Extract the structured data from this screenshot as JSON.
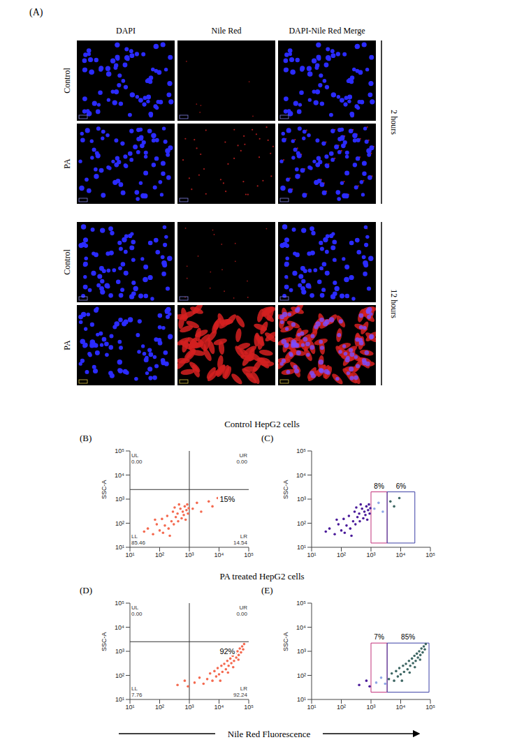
{
  "panel_a": {
    "label": "(A)",
    "columns": [
      "DAPI",
      "Nile Red",
      "DAPI-Nile Red Merge"
    ],
    "groups": [
      {
        "label": "2 hours",
        "rows": [
          "Control",
          "PA"
        ]
      },
      {
        "label": "12 hours",
        "rows": [
          "Control",
          "PA"
        ]
      }
    ]
  },
  "x_label": "Nile Red Fluorescence",
  "chart_data": [
    {
      "type": "scatter",
      "panel": "(B)",
      "group": "Control HepG2 cells",
      "y_label": "SSC-A",
      "log": true,
      "xlim": [
        10,
        100000
      ],
      "xticks": [
        {
          "value": 10,
          "label": "10¹"
        },
        {
          "value": 100,
          "label": "10²"
        },
        {
          "value": 1000,
          "label": "10³"
        },
        {
          "value": 10000,
          "label": "10⁴"
        },
        {
          "value": 100000,
          "label": "10⁵"
        }
      ],
      "ylim": [
        10,
        100000
      ],
      "yticks": [
        {
          "value": 10,
          "label": "10¹"
        },
        {
          "value": 100,
          "label": "10²"
        },
        {
          "value": 1000,
          "label": "10³"
        },
        {
          "value": 10000,
          "label": "10⁴"
        },
        {
          "value": 100000,
          "label": "10⁵"
        }
      ],
      "series": [
        {
          "color": "#f4694f",
          "x": [
            30,
            40,
            60,
            80,
            100,
            120,
            150,
            180,
            200,
            250,
            280,
            300,
            350,
            400,
            420,
            500,
            550,
            600,
            650,
            700,
            750,
            800,
            850,
            900,
            950,
            70,
            130,
            450,
            320,
            220,
            1300,
            1800,
            2500,
            4500,
            6000,
            9000
          ],
          "values": [
            45,
            60,
            35,
            90,
            50,
            150,
            80,
            200,
            60,
            120,
            300,
            90,
            180,
            250,
            120,
            400,
            160,
            300,
            220,
            500,
            140,
            350,
            600,
            250,
            420,
            140,
            40,
            600,
            450,
            30,
            400,
            700,
            300,
            800,
            500,
            1100
          ]
        }
      ],
      "quadrant_lines": {
        "x": 1000,
        "y": 2500
      },
      "quadrants": [
        {
          "name": "UL",
          "value": 0,
          "label": "0.00"
        },
        {
          "name": "UR",
          "value": 0,
          "label": "0.00"
        },
        {
          "name": "LL",
          "value": 85.46
        },
        {
          "name": "LR",
          "value": 14.54
        }
      ],
      "annotation": {
        "value": 15,
        "label": "15%"
      }
    },
    {
      "type": "scatter",
      "panel": "(C)",
      "group": "Control HepG2 cells",
      "y_label": "SSC-A",
      "log": true,
      "xlim": [
        10,
        100000
      ],
      "xticks": [
        {
          "value": 10,
          "label": "10¹"
        },
        {
          "value": 100,
          "label": "10²"
        },
        {
          "value": 1000,
          "label": "10³"
        },
        {
          "value": 10000,
          "label": "10⁴"
        },
        {
          "value": 100000,
          "label": "10⁵"
        }
      ],
      "ylim": [
        10,
        100000
      ],
      "yticks": [
        {
          "value": 10,
          "label": "10¹"
        },
        {
          "value": 100,
          "label": "10²"
        },
        {
          "value": 1000,
          "label": "10³"
        },
        {
          "value": 10000,
          "label": "10⁴"
        },
        {
          "value": 100000,
          "label": "10⁵"
        }
      ],
      "series": [
        {
          "color": "#4a1b9a",
          "x": [
            30,
            40,
            60,
            80,
            100,
            120,
            150,
            180,
            200,
            250,
            280,
            300,
            350,
            400,
            420,
            500,
            550,
            600,
            650,
            700,
            750,
            800,
            850,
            900,
            950,
            70,
            130,
            450,
            320,
            220
          ],
          "values": [
            45,
            60,
            35,
            90,
            50,
            150,
            80,
            200,
            60,
            120,
            300,
            90,
            180,
            250,
            120,
            400,
            160,
            300,
            220,
            500,
            140,
            350,
            600,
            250,
            420,
            140,
            40,
            600,
            450,
            30
          ]
        },
        {
          "color": "#8ea6e6",
          "x": [
            1300,
            1800,
            2500
          ],
          "values": [
            400,
            700,
            300
          ]
        },
        {
          "color": "#3d6663",
          "x": [
            4500,
            6000,
            9000
          ],
          "values": [
            800,
            500,
            1100
          ]
        }
      ],
      "gates": [
        {
          "xlim": [
            1000,
            3500
          ],
          "ylim": [
            15,
            2000
          ],
          "value": 8,
          "label": "8%",
          "color": "#c2307a"
        },
        {
          "xlim": [
            3500,
            30000
          ],
          "ylim": [
            15,
            2000
          ],
          "value": 6,
          "label": "6%",
          "color": "#3b3fa6"
        }
      ]
    },
    {
      "type": "scatter",
      "panel": "(D)",
      "group": "PA treated HepG2 cells",
      "y_label": "SSC-A",
      "log": true,
      "xlim": [
        10,
        100000
      ],
      "xticks": [
        {
          "value": 10,
          "label": "10¹"
        },
        {
          "value": 100,
          "label": "10²"
        },
        {
          "value": 1000,
          "label": "10³"
        },
        {
          "value": 10000,
          "label": "10⁴"
        },
        {
          "value": 100000,
          "label": "10⁵"
        }
      ],
      "ylim": [
        10,
        100000
      ],
      "yticks": [
        {
          "value": 10,
          "label": "10¹"
        },
        {
          "value": 100,
          "label": "10²"
        },
        {
          "value": 1000,
          "label": "10³"
        },
        {
          "value": 10000,
          "label": "10⁴"
        },
        {
          "value": 100000,
          "label": "10⁵"
        }
      ],
      "series": [
        {
          "color": "#f4694f",
          "x": [
            400,
            700,
            900,
            1500,
            2200,
            3000,
            4000,
            5000,
            6000,
            7000,
            8000,
            9000,
            10000,
            12000,
            13000,
            15000,
            17000,
            19000,
            21000,
            24000,
            26000,
            29000,
            32000,
            35000,
            38000,
            42000,
            46000,
            50000,
            55000,
            60000,
            65000,
            70000,
            11000,
            20000,
            30000,
            45000
          ],
          "values": [
            40,
            60,
            35,
            50,
            80,
            45,
            70,
            120,
            60,
            150,
            90,
            200,
            110,
            250,
            140,
            300,
            180,
            400,
            250,
            500,
            320,
            650,
            400,
            800,
            550,
            1000,
            700,
            1300,
            900,
            1600,
            1200,
            2000,
            60,
            130,
            220,
            450
          ]
        }
      ],
      "quadrant_lines": {
        "x": 1000,
        "y": 2500
      },
      "quadrants": [
        {
          "name": "UL",
          "value": 0,
          "label": "0.00"
        },
        {
          "name": "UR",
          "value": 0,
          "label": "0.00"
        },
        {
          "name": "LL",
          "value": 7.76
        },
        {
          "name": "LR",
          "value": 92.24
        }
      ],
      "annotation": {
        "value": 92,
        "label": "92%"
      }
    },
    {
      "type": "scatter",
      "panel": "(E)",
      "group": "PA treated HepG2 cells",
      "y_label": "SSC-A",
      "log": true,
      "xlim": [
        10,
        100000
      ],
      "xticks": [
        {
          "value": 10,
          "label": "10¹"
        },
        {
          "value": 100,
          "label": "10²"
        },
        {
          "value": 1000,
          "label": "10³"
        },
        {
          "value": 10000,
          "label": "10⁴"
        },
        {
          "value": 100000,
          "label": "10⁵"
        }
      ],
      "ylim": [
        10,
        100000
      ],
      "yticks": [
        {
          "value": 10,
          "label": "10¹"
        },
        {
          "value": 100,
          "label": "10²"
        },
        {
          "value": 1000,
          "label": "10³"
        },
        {
          "value": 10000,
          "label": "10⁴"
        },
        {
          "value": 100000,
          "label": "10⁵"
        }
      ],
      "series": [
        {
          "color": "#4a1b9a",
          "x": [
            400,
            700,
            900
          ],
          "values": [
            40,
            60,
            35
          ]
        },
        {
          "color": "#8ea6e6",
          "x": [
            1500,
            2200,
            3000
          ],
          "values": [
            50,
            80,
            45
          ]
        },
        {
          "color": "#3d6663",
          "x": [
            4000,
            5000,
            6000,
            7000,
            8000,
            9000,
            10000,
            12000,
            13000,
            15000,
            17000,
            19000,
            21000,
            24000,
            26000,
            29000,
            32000,
            35000,
            38000,
            42000,
            46000,
            50000,
            55000,
            60000,
            65000,
            70000,
            11000,
            20000,
            30000,
            45000
          ],
          "values": [
            70,
            120,
            60,
            150,
            90,
            200,
            110,
            250,
            140,
            300,
            180,
            400,
            250,
            500,
            320,
            650,
            400,
            800,
            550,
            1000,
            700,
            1300,
            900,
            1600,
            1200,
            2000,
            60,
            130,
            220,
            450
          ]
        }
      ],
      "gates": [
        {
          "xlim": [
            1000,
            3500
          ],
          "ylim": [
            20,
            2200
          ],
          "value": 7,
          "label": "7%",
          "color": "#c2307a"
        },
        {
          "xlim": [
            3500,
            90000
          ],
          "ylim": [
            20,
            2200
          ],
          "value": 85,
          "label": "85%",
          "color": "#3b3fa6"
        }
      ]
    }
  ]
}
